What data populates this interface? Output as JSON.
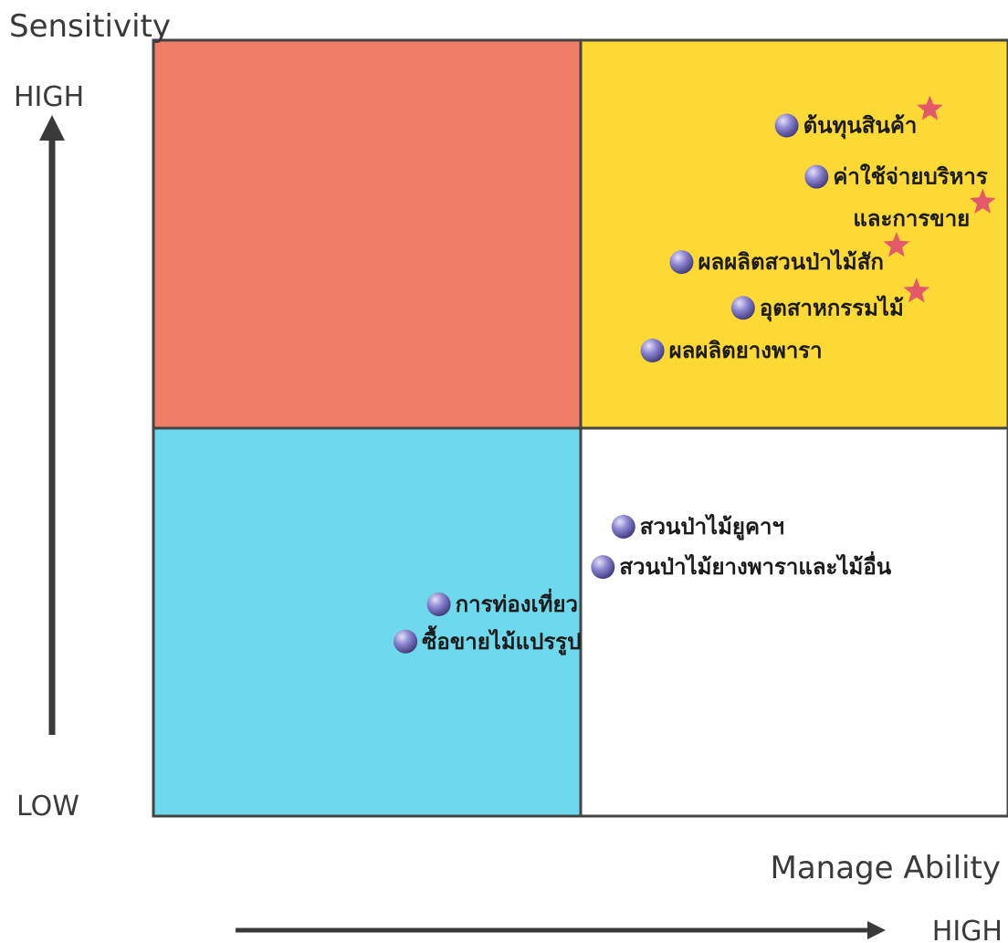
{
  "chart_data": {
    "type": "scatter",
    "title": "",
    "ylabel": "Sensitivity",
    "xlabel": "Manage Ability",
    "y_high_label": "HIGH",
    "y_low_label": "LOW",
    "x_high_label": "HIGH",
    "xlim": [
      0,
      100
    ],
    "ylim": [
      0,
      100
    ],
    "grid": false,
    "quadrants": [
      {
        "name": "high-sensitivity-low-ability",
        "x_range": [
          0,
          50
        ],
        "y_range": [
          50,
          100
        ],
        "color": "#F07D67"
      },
      {
        "name": "high-sensitivity-high-ability",
        "x_range": [
          50,
          100
        ],
        "y_range": [
          50,
          100
        ],
        "color": "#FCD935"
      },
      {
        "name": "low-sensitivity-low-ability",
        "x_range": [
          0,
          50
        ],
        "y_range": [
          0,
          50
        ],
        "color": "#6ED9EC"
      },
      {
        "name": "low-sensitivity-high-ability",
        "x_range": [
          50,
          100
        ],
        "y_range": [
          0,
          50
        ],
        "color": "#FFFFFF"
      }
    ],
    "points": [
      {
        "label": [
          "ต้นทุนสินค้า"
        ],
        "x": 74.1,
        "y": 89.0,
        "starred": true
      },
      {
        "label": [
          "ค่าใช้จ่ายบริหาร",
          "และการขาย"
        ],
        "x": 77.6,
        "y": 82.4,
        "starred": true
      },
      {
        "label": [
          "ผลผลิตสวนป่าไม้สัก"
        ],
        "x": 61.8,
        "y": 71.4,
        "starred": true
      },
      {
        "label": [
          "อุตสาหกรรมไม้"
        ],
        "x": 69.0,
        "y": 65.5,
        "starred": true
      },
      {
        "label": [
          "ผลผลิตยางพารา"
        ],
        "x": 58.4,
        "y": 60.0,
        "starred": false
      },
      {
        "label": [
          "สวนป่าไม้ยูคาฯ"
        ],
        "x": 55.0,
        "y": 37.3,
        "starred": false
      },
      {
        "label": [
          "สวนป่าไม้ยางพาราและไม้อื่น"
        ],
        "x": 52.6,
        "y": 32.1,
        "starred": false
      },
      {
        "label": [
          "การท่องเที่ยว"
        ],
        "x": 33.4,
        "y": 27.3,
        "starred": false
      },
      {
        "label": [
          "ซื้อขายไม้แปรรูป"
        ],
        "x": 29.5,
        "y": 22.5,
        "starred": false
      }
    ],
    "colors": {
      "point": "#7B74C4",
      "star": "#E4596A",
      "axis_arrow": "#3a3a3a",
      "frame": "#444444"
    }
  }
}
